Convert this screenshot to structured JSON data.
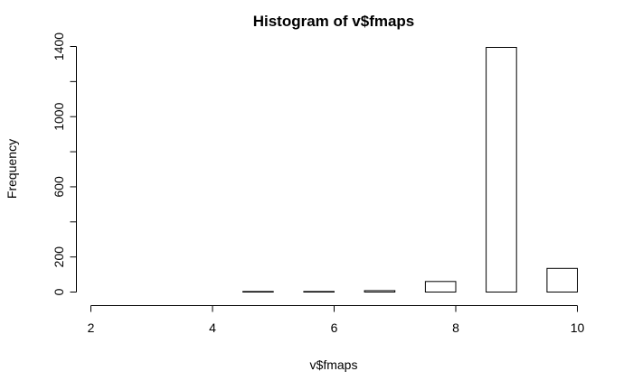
{
  "chart_data": {
    "type": "bar",
    "title": "Histogram of v$fmaps",
    "xlabel": "v$fmaps",
    "ylabel": "Frequency",
    "bins": [
      {
        "from": 2.0,
        "to": 2.5,
        "value": 0
      },
      {
        "from": 2.5,
        "to": 3.0,
        "value": 0
      },
      {
        "from": 3.0,
        "to": 3.5,
        "value": 0
      },
      {
        "from": 3.5,
        "to": 4.0,
        "value": 0
      },
      {
        "from": 4.0,
        "to": 4.5,
        "value": 0
      },
      {
        "from": 4.5,
        "to": 5.0,
        "value": 3
      },
      {
        "from": 5.0,
        "to": 5.5,
        "value": 0
      },
      {
        "from": 5.5,
        "to": 6.0,
        "value": 3
      },
      {
        "from": 6.0,
        "to": 6.5,
        "value": 0
      },
      {
        "from": 6.5,
        "to": 7.0,
        "value": 8
      },
      {
        "from": 7.0,
        "to": 7.5,
        "value": 0
      },
      {
        "from": 7.5,
        "to": 8.0,
        "value": 60
      },
      {
        "from": 8.0,
        "to": 8.5,
        "value": 0
      },
      {
        "from": 8.5,
        "to": 9.0,
        "value": 1395
      },
      {
        "from": 9.0,
        "to": 9.5,
        "value": 0
      },
      {
        "from": 9.5,
        "to": 10.0,
        "value": 135
      }
    ],
    "xlim": [
      2,
      10
    ],
    "ylim": [
      0,
      1400
    ],
    "xticks": [
      2,
      4,
      6,
      8,
      10
    ],
    "yticks": [
      0,
      200,
      600,
      1000,
      1400
    ],
    "grid": false
  }
}
